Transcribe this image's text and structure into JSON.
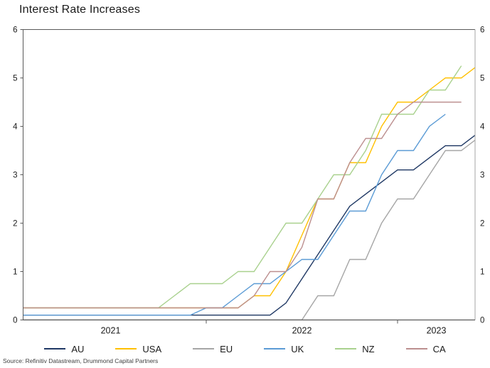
{
  "chart_data": {
    "type": "line",
    "title": "Interest Rate Increases",
    "source": "Source: Refinitiv Datastream, Drummond Capital Partners",
    "y_axis": {
      "min": 0,
      "max": 6,
      "ticks": [
        0,
        1,
        2,
        3,
        4,
        5,
        6
      ],
      "sides": "both",
      "gridlines": false
    },
    "x_axis": {
      "labels": [
        "2021",
        "2022",
        "2023"
      ],
      "year_start_indices": [
        0,
        12,
        24
      ],
      "points_per_year": 12
    },
    "legend_position": "bottom",
    "series": [
      {
        "name": "AU",
        "color": "#1F3864",
        "values": [
          0.1,
          0.1,
          0.1,
          0.1,
          0.1,
          0.1,
          0.1,
          0.1,
          0.1,
          0.1,
          0.1,
          0.1,
          0.1,
          0.1,
          0.1,
          0.1,
          0.1,
          0.35,
          0.85,
          1.35,
          1.85,
          2.35,
          2.6,
          2.85,
          3.1,
          3.1,
          3.35,
          3.6,
          3.6,
          3.85
        ]
      },
      {
        "name": "USA",
        "color": "#FFC000",
        "values": [
          0.25,
          0.25,
          0.25,
          0.25,
          0.25,
          0.25,
          0.25,
          0.25,
          0.25,
          0.25,
          0.25,
          0.25,
          0.25,
          0.25,
          0.25,
          0.5,
          0.5,
          1.0,
          1.75,
          2.5,
          2.5,
          3.25,
          3.25,
          4.0,
          4.5,
          4.5,
          4.75,
          5.0,
          5.0,
          5.25
        ]
      },
      {
        "name": "EU",
        "color": "#A6A6A6",
        "values": [
          0,
          0,
          0,
          0,
          0,
          0,
          0,
          0,
          0,
          0,
          0,
          0,
          0,
          0,
          0,
          0,
          0,
          0,
          0,
          0.5,
          0.5,
          1.25,
          1.25,
          2.0,
          2.5,
          2.5,
          3.0,
          3.5,
          3.5,
          3.75
        ]
      },
      {
        "name": "UK",
        "color": "#5B9BD5",
        "values": [
          0.1,
          0.1,
          0.1,
          0.1,
          0.1,
          0.1,
          0.1,
          0.1,
          0.1,
          0.1,
          0.1,
          0.1,
          0.25,
          0.25,
          0.5,
          0.75,
          0.75,
          1.0,
          1.25,
          1.25,
          1.75,
          2.25,
          2.25,
          3.0,
          3.5,
          3.5,
          4.0,
          4.25
        ]
      },
      {
        "name": "NZ",
        "color": "#A9D18E",
        "values": [
          0.25,
          0.25,
          0.25,
          0.25,
          0.25,
          0.25,
          0.25,
          0.25,
          0.25,
          0.25,
          0.5,
          0.75,
          0.75,
          0.75,
          1.0,
          1.0,
          1.5,
          2.0,
          2.0,
          2.5,
          3.0,
          3.0,
          3.5,
          4.25,
          4.25,
          4.25,
          4.75,
          4.75,
          5.25
        ]
      },
      {
        "name": "CA",
        "color": "#BC8F8F",
        "values": [
          0.25,
          0.25,
          0.25,
          0.25,
          0.25,
          0.25,
          0.25,
          0.25,
          0.25,
          0.25,
          0.25,
          0.25,
          0.25,
          0.25,
          0.25,
          0.5,
          1.0,
          1.0,
          1.5,
          2.5,
          2.5,
          3.25,
          3.75,
          3.75,
          4.25,
          4.5,
          4.5,
          4.5,
          4.5
        ]
      }
    ]
  }
}
